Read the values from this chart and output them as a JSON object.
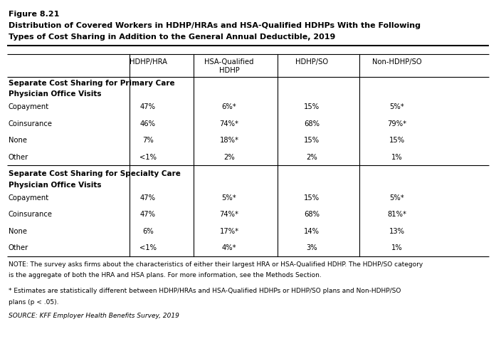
{
  "figure_label": "Figure 8.21",
  "title_line1": "Distribution of Covered Workers in HDHP/HRAs and HSA-Qualified HDHPs With the Following",
  "title_line2": "Types of Cost Sharing in Addition to the General Annual Deductible, 2019",
  "col_headers": [
    "HDHP/HRA",
    "HSA-Qualified\nHDHP",
    "HDHP/SO",
    "Non-HDHP/SO"
  ],
  "section1_header_line1": "Separate Cost Sharing for Primary Care",
  "section1_header_line2": "Physician Office Visits",
  "section1_rows": [
    [
      "Copayment",
      "47%",
      "6%*",
      "15%",
      "5%*"
    ],
    [
      "Coinsurance",
      "46%",
      "74%*",
      "68%",
      "79%*"
    ],
    [
      "None",
      "7%",
      "18%*",
      "15%",
      "15%"
    ],
    [
      "Other",
      "<1%",
      "2%",
      "2%",
      "1%"
    ]
  ],
  "section2_header_line1": "Separate Cost Sharing for Specialty Care",
  "section2_header_line2": "Physician Office Visits",
  "section2_rows": [
    [
      "Copayment",
      "47%",
      "5%*",
      "15%",
      "5%*"
    ],
    [
      "Coinsurance",
      "47%",
      "74%*",
      "68%",
      "81%*"
    ],
    [
      "None",
      "6%",
      "17%*",
      "14%",
      "13%"
    ],
    [
      "Other",
      "<1%",
      "4%*",
      "3%",
      "1%"
    ]
  ],
  "note1": "NOTE: The survey asks firms about the characteristics of either their largest HRA or HSA-Qualified HDHP. The HDHP/SO category",
  "note1b": "is the aggregate of both the HRA and HSA plans. For more information, see the Methods Section.",
  "note2": "* Estimates are statistically different between HDHP/HRAs and HSA-Qualified HDHPs or HDHP/SO plans and Non-HDHP/SO",
  "note2b": "plans (p < .05).",
  "source": "SOURCE: KFF Employer Health Benefits Survey, 2019",
  "bg_color": "#ffffff",
  "fig_width": 6.97,
  "fig_height": 4.77,
  "dpi": 100
}
